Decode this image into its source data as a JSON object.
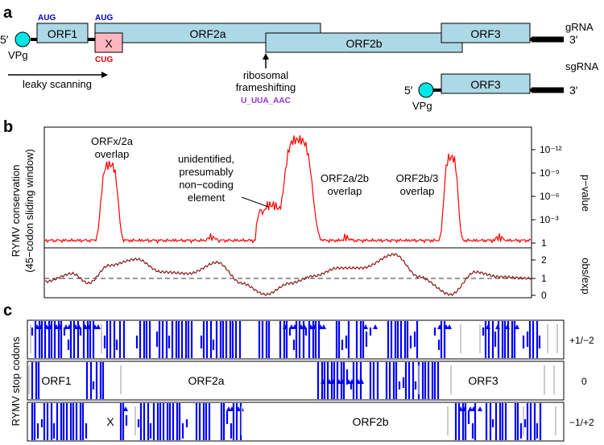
{
  "panels": {
    "a": "a",
    "b": "b",
    "c": "c"
  },
  "genome": {
    "five_prime": "5′",
    "three_prime": "3′",
    "vpg": "VPg",
    "grna_label": "gRNA",
    "sgrna_label": "sgRNA",
    "orf1": "ORF1",
    "orfx": "X",
    "orf2a": "ORF2a",
    "orf2b": "ORF2b",
    "orf3": "ORF3",
    "aug_1": "AUG",
    "aug_2": "AUG",
    "cug": "CUG",
    "leaky_scanning": "leaky scanning",
    "frameshift_line1": "ribosomal",
    "frameshift_line2": "frameshifting",
    "slippery_site": "U_UUA_AAC",
    "colors": {
      "orf_fill": "#add8e6",
      "orfx_fill": "#ffb6c1",
      "vpg_fill": "#00e5e5",
      "start_codon": "#0000cd",
      "cug_codon": "#e00000",
      "slippery_site": "#9932cc"
    }
  },
  "conservation": {
    "ylabel_line1": "RYMV conservation",
    "ylabel_line2": "(45−codon sliding window)",
    "pvalue_label": "p−value",
    "obsexp_label": "obs/exp",
    "pvalue_ticks": [
      "10⁻¹²",
      "10⁻⁹",
      "10⁻⁶",
      "10⁻³",
      "1"
    ],
    "obsexp_ticks": [
      "2",
      "1",
      "0"
    ],
    "annotations": {
      "orfx_line1": "ORFx/2a",
      "orfx_line2": "overlap",
      "unid_line1": "unidentified,",
      "unid_line2": "presumably",
      "unid_line3": "non−coding",
      "unid_line4": "element",
      "orf2ab_line1": "ORF2a/2b",
      "orf2ab_line2": "overlap",
      "orf2b3_line1": "ORF2b/3",
      "orf2b3_line2": "overlap"
    },
    "colors": {
      "pvalue": "#ff0000",
      "obsexp": "#8b1a1a",
      "reference": "#333333"
    }
  },
  "stop_codons": {
    "ylabel": "RYMV stop codons",
    "frame_labels": [
      "+1/−2",
      "0",
      "−1/+2"
    ],
    "frame0_orf1": "ORF1",
    "frame0_orf2a": "ORF2a",
    "frame0_orf3": "ORF3",
    "frame2_x": "X",
    "frame2_orf2b": "ORF2b",
    "colors": {
      "stop": "#0000ff",
      "gap": "#bbbbbb"
    }
  }
}
